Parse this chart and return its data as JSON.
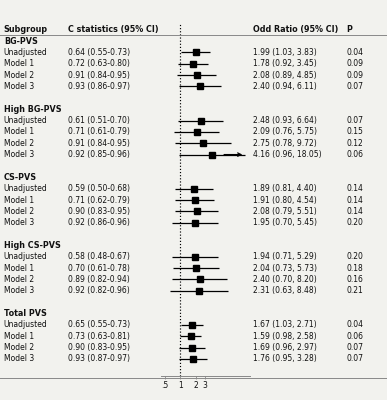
{
  "header": {
    "col1": "Subgroup",
    "col2": "C statistics (95% CI)",
    "col3": "Odd Ratio (95% CI)",
    "col4": "P"
  },
  "groups": [
    {
      "name": "BG-PVS",
      "rows": [
        {
          "label": "Unadjusted",
          "cstat": "0.64 (0.55-0.73)",
          "or": 1.99,
          "lower": 1.03,
          "upper": 3.83,
          "or_text": "1.99 (1.03, 3.83)",
          "p": "0.04",
          "arrow": false
        },
        {
          "label": "Model 1",
          "cstat": "0.72 (0.63-0.80)",
          "or": 1.78,
          "lower": 0.92,
          "upper": 3.45,
          "or_text": "1.78 (0.92, 3.45)",
          "p": "0.09",
          "arrow": false
        },
        {
          "label": "Model 2",
          "cstat": "0.91 (0.84-0.95)",
          "or": 2.08,
          "lower": 0.89,
          "upper": 4.85,
          "or_text": "2.08 (0.89, 4.85)",
          "p": "0.09",
          "arrow": false
        },
        {
          "label": "Model 3",
          "cstat": "0.93 (0.86-0.97)",
          "or": 2.4,
          "lower": 0.94,
          "upper": 6.11,
          "or_text": "2.40 (0.94, 6.11)",
          "p": "0.07",
          "arrow": false
        }
      ]
    },
    {
      "name": "High BG-PVS",
      "rows": [
        {
          "label": "Unadjusted",
          "cstat": "0.61 (0.51-0.70)",
          "or": 2.48,
          "lower": 0.93,
          "upper": 6.64,
          "or_text": "2.48 (0.93, 6.64)",
          "p": "0.07",
          "arrow": false
        },
        {
          "label": "Model 1",
          "cstat": "0.71 (0.61-0.79)",
          "or": 2.09,
          "lower": 0.76,
          "upper": 5.75,
          "or_text": "2.09 (0.76, 5.75)",
          "p": "0.15",
          "arrow": false
        },
        {
          "label": "Model 2",
          "cstat": "0.91 (0.84-0.95)",
          "or": 2.75,
          "lower": 0.78,
          "upper": 9.72,
          "or_text": "2.75 (0.78, 9.72)",
          "p": "0.12",
          "arrow": false
        },
        {
          "label": "Model 3",
          "cstat": "0.92 (0.85-0.96)",
          "or": 4.16,
          "lower": 0.96,
          "upper": 18.05,
          "or_text": "4.16 (0.96, 18.05)",
          "p": "0.06",
          "arrow": true
        }
      ]
    },
    {
      "name": "CS-PVS",
      "rows": [
        {
          "label": "Unadjusted",
          "cstat": "0.59 (0.50-0.68)",
          "or": 1.89,
          "lower": 0.81,
          "upper": 4.4,
          "or_text": "1.89 (0.81, 4.40)",
          "p": "0.14",
          "arrow": false
        },
        {
          "label": "Model 1",
          "cstat": "0.71 (0.62-0.79)",
          "or": 1.91,
          "lower": 0.8,
          "upper": 4.54,
          "or_text": "1.91 (0.80, 4.54)",
          "p": "0.14",
          "arrow": false
        },
        {
          "label": "Model 2",
          "cstat": "0.90 (0.83-0.95)",
          "or": 2.08,
          "lower": 0.79,
          "upper": 5.51,
          "or_text": "2.08 (0.79, 5.51)",
          "p": "0.14",
          "arrow": false
        },
        {
          "label": "Model 3",
          "cstat": "0.92 (0.86-0.96)",
          "or": 1.95,
          "lower": 0.7,
          "upper": 5.45,
          "or_text": "1.95 (0.70, 5.45)",
          "p": "0.20",
          "arrow": false
        }
      ]
    },
    {
      "name": "High CS-PVS",
      "rows": [
        {
          "label": "Unadjusted",
          "cstat": "0.58 (0.48-0.67)",
          "or": 1.94,
          "lower": 0.71,
          "upper": 5.29,
          "or_text": "1.94 (0.71, 5.29)",
          "p": "0.20",
          "arrow": false
        },
        {
          "label": "Model 1",
          "cstat": "0.70 (0.61-0.78)",
          "or": 2.04,
          "lower": 0.73,
          "upper": 5.73,
          "or_text": "2.04 (0.73, 5.73)",
          "p": "0.18",
          "arrow": false
        },
        {
          "label": "Model 2",
          "cstat": "0.89 (0.82-0.94)",
          "or": 2.4,
          "lower": 0.7,
          "upper": 8.2,
          "or_text": "2.40 (0.70, 8.20)",
          "p": "0.16",
          "arrow": false
        },
        {
          "label": "Model 3",
          "cstat": "0.92 (0.82-0.96)",
          "or": 2.31,
          "lower": 0.63,
          "upper": 8.48,
          "or_text": "2.31 (0.63, 8.48)",
          "p": "0.21",
          "arrow": false
        }
      ]
    },
    {
      "name": "Total PVS",
      "rows": [
        {
          "label": "Unadjusted",
          "cstat": "0.65 (0.55-0.73)",
          "or": 1.67,
          "lower": 1.03,
          "upper": 2.71,
          "or_text": "1.67 (1.03, 2.71)",
          "p": "0.04",
          "arrow": false
        },
        {
          "label": "Model 1",
          "cstat": "0.73 (0.63-0.81)",
          "or": 1.59,
          "lower": 0.98,
          "upper": 2.58,
          "or_text": "1.59 (0.98, 2.58)",
          "p": "0.06",
          "arrow": false
        },
        {
          "label": "Model 2",
          "cstat": "0.90 (0.83-0.95)",
          "or": 1.69,
          "lower": 0.96,
          "upper": 2.97,
          "or_text": "1.69 (0.96, 2.97)",
          "p": "0.07",
          "arrow": false
        },
        {
          "label": "Model 3",
          "cstat": "0.93 (0.87-0.97)",
          "or": 1.76,
          "lower": 0.95,
          "upper": 3.28,
          "or_text": "1.76 (0.95, 3.28)",
          "p": "0.07",
          "arrow": false
        }
      ]
    }
  ],
  "xmin": 0.42,
  "xmax": 22,
  "plot_bg": "#f2f2ee",
  "border_color": "#888888",
  "text_color": "#111111",
  "fs_header": 5.8,
  "fs_label": 5.5,
  "fs_group": 5.8,
  "marker_size": 4.0,
  "lw": 0.9
}
